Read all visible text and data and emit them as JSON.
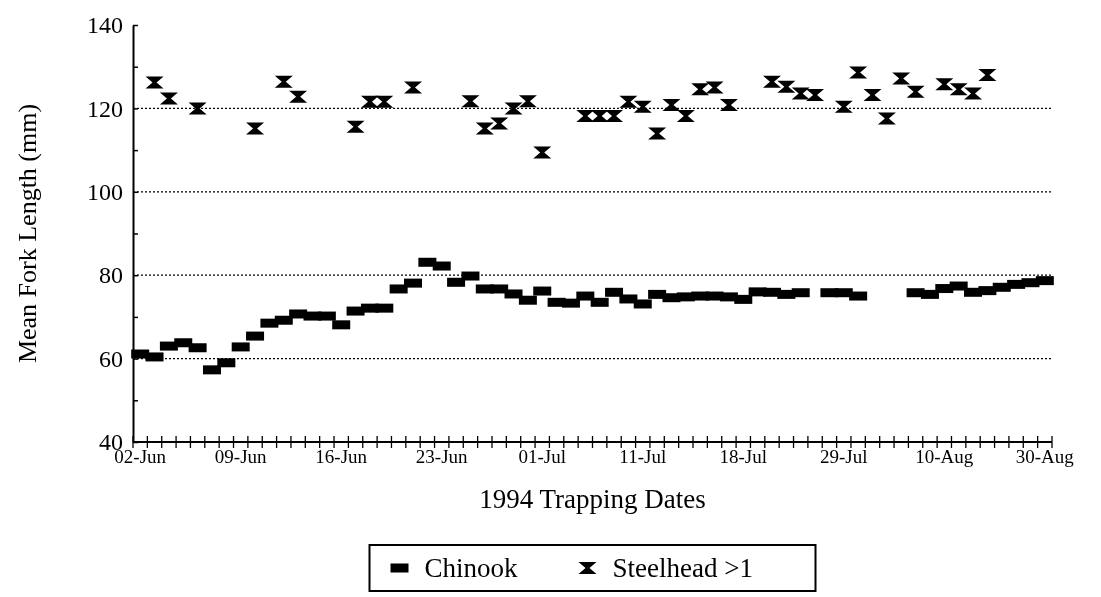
{
  "chart_data": {
    "type": "scatter",
    "xlabel": "1994 Trapping Dates",
    "ylabel": "Mean Fork Length (mm)",
    "categories": [
      "02-Jun",
      null,
      null,
      null,
      null,
      null,
      null,
      "09-Jun",
      null,
      null,
      null,
      null,
      null,
      null,
      "16-Jun",
      null,
      null,
      null,
      null,
      null,
      null,
      "23-Jun",
      null,
      null,
      null,
      null,
      null,
      null,
      "01-Jul",
      null,
      null,
      null,
      null,
      null,
      null,
      "11-Jul",
      null,
      null,
      null,
      null,
      null,
      null,
      "18-Jul",
      null,
      null,
      null,
      null,
      null,
      null,
      "29-Jul",
      null,
      null,
      null,
      null,
      null,
      null,
      "10-Aug",
      null,
      null,
      null,
      null,
      null,
      null,
      "30-Aug"
    ],
    "series": [
      {
        "name": "Chinook",
        "color": "#000000",
        "marker": "square",
        "values": [
          61.1,
          60.4,
          63.0,
          63.8,
          62.6,
          57.3,
          59.0,
          62.8,
          65.4,
          68.5,
          69.2,
          70.7,
          70.2,
          70.2,
          68.1,
          71.4,
          72.1,
          72.1,
          76.7,
          78.1,
          83.1,
          82.2,
          78.3,
          79.8,
          76.7,
          76.7,
          75.5,
          74.0,
          76.2,
          73.5,
          73.3,
          75.0,
          73.5,
          75.9,
          74.3,
          73.1,
          75.4,
          74.6,
          74.8,
          75.0,
          75.0,
          74.8,
          74.2,
          76.0,
          75.9,
          75.4,
          75.8,
          null,
          75.8,
          75.8,
          75.0,
          null,
          null,
          null,
          75.8,
          75.4,
          76.8,
          77.4,
          75.9,
          76.3,
          77.1,
          77.8,
          78.2,
          78.7
        ]
      },
      {
        "name": "Steelhead >1",
        "color": "#000000",
        "marker": "cross",
        "values": [
          null,
          126.2,
          122.4,
          null,
          120.0,
          null,
          null,
          null,
          115.2,
          null,
          126.4,
          122.8,
          null,
          null,
          null,
          115.6,
          121.6,
          121.6,
          null,
          125.0,
          null,
          null,
          null,
          121.7,
          115.2,
          116.4,
          120.0,
          121.7,
          109.4,
          null,
          null,
          118.2,
          118.2,
          118.2,
          121.6,
          120.4,
          114.0,
          120.8,
          118.2,
          124.6,
          125.0,
          120.8,
          null,
          null,
          126.4,
          125.2,
          123.6,
          123.2,
          null,
          120.4,
          128.6,
          123.2,
          117.6,
          127.2,
          124.0,
          null,
          125.8,
          124.6,
          123.6,
          128.0,
          null,
          null,
          null,
          null
        ]
      }
    ],
    "ylim": [
      40,
      140
    ],
    "yticks": [
      40,
      {
        "value": 50,
        "label": null
      },
      60,
      {
        "value": 70,
        "label": null
      },
      80,
      {
        "value": 90,
        "label": null
      },
      100,
      {
        "value": 110,
        "label": null
      },
      120,
      {
        "value": 130,
        "label": null
      },
      140
    ],
    "grid": "y",
    "legend": "bottom"
  }
}
